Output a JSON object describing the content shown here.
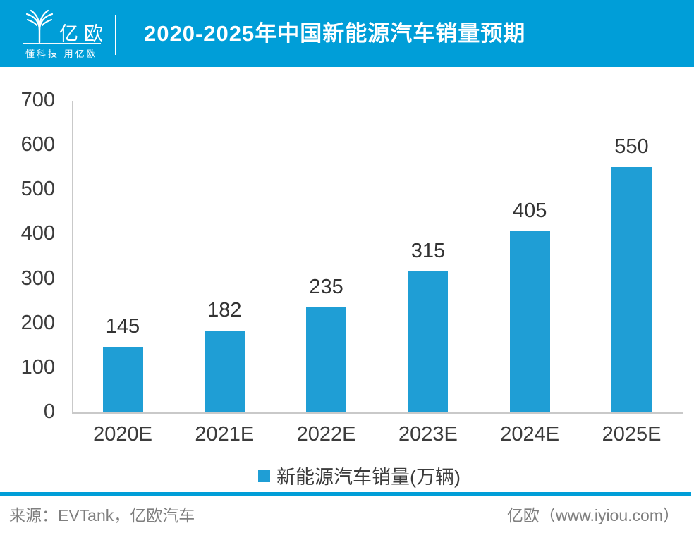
{
  "header": {
    "logo_text": "亿欧",
    "logo_tagline": "懂科技 用亿欧",
    "title": "2020-2025年中国新能源汽车销量预期"
  },
  "chart_data": {
    "type": "bar",
    "title": "2020-2025年中国新能源汽车销量预期",
    "categories": [
      "2020E",
      "2021E",
      "2022E",
      "2023E",
      "2024E",
      "2025E"
    ],
    "values": [
      145,
      182,
      235,
      315,
      405,
      550
    ],
    "series_name": "新能源汽车销量(万辆)",
    "xlabel": "",
    "ylabel": "",
    "ylim": [
      0,
      700
    ],
    "yticks": [
      0,
      100,
      200,
      300,
      400,
      500,
      600,
      700
    ],
    "grid": false,
    "legend_position": "bottom",
    "bar_color": "#1F9ED5"
  },
  "legend": {
    "label": "新能源汽车销量(万辆)"
  },
  "footer": {
    "source": "来源：EVTank，亿欧汽车",
    "brand": "亿欧（www.iyiou.com）"
  },
  "colors": {
    "header_blue": "#009ED8",
    "bar_blue": "#1F9ED5",
    "axis_gray": "#C9C9C9",
    "tick_text": "#3C3C3C",
    "footer_text": "#7F7F7F"
  }
}
